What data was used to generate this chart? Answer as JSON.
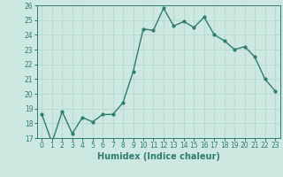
{
  "x": [
    0,
    1,
    2,
    3,
    4,
    5,
    6,
    7,
    8,
    9,
    10,
    11,
    12,
    13,
    14,
    15,
    16,
    17,
    18,
    19,
    20,
    21,
    22,
    23
  ],
  "y": [
    18.6,
    16.7,
    18.8,
    17.3,
    18.4,
    18.1,
    18.6,
    18.6,
    19.4,
    21.5,
    24.4,
    24.3,
    25.8,
    24.6,
    24.9,
    24.5,
    25.2,
    24.0,
    23.6,
    23.0,
    23.2,
    22.5,
    21.0,
    20.2
  ],
  "xlabel": "Humidex (Indice chaleur)",
  "ylim": [
    17,
    26
  ],
  "xlim": [
    -0.5,
    23.5
  ],
  "yticks": [
    17,
    18,
    19,
    20,
    21,
    22,
    23,
    24,
    25,
    26
  ],
  "xticks": [
    0,
    1,
    2,
    3,
    4,
    5,
    6,
    7,
    8,
    9,
    10,
    11,
    12,
    13,
    14,
    15,
    16,
    17,
    18,
    19,
    20,
    21,
    22,
    23
  ],
  "line_color": "#2e7d6e",
  "bg_color": "#cce8e0",
  "grid_color": "#b5d8ce",
  "marker": "o",
  "marker_size": 2,
  "line_width": 1.0,
  "tick_label_fontsize": 5.5,
  "xlabel_fontsize": 7.0
}
